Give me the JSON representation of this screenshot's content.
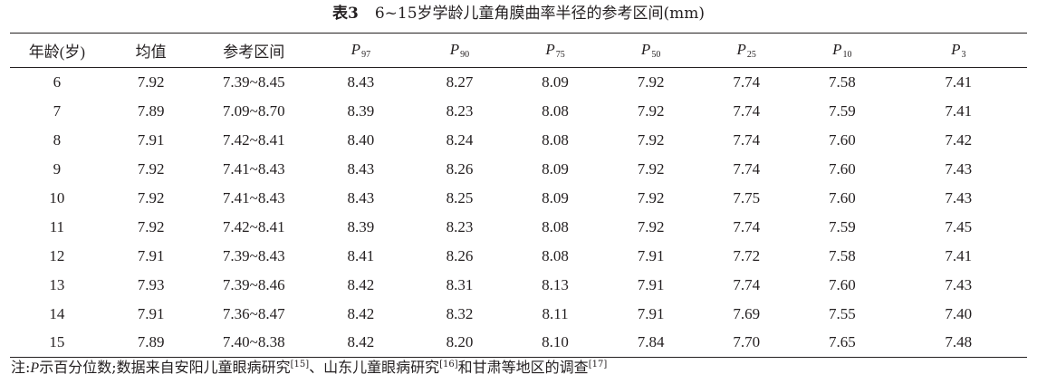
{
  "caption": {
    "label": "表3",
    "text": "6~15岁学龄儿童角膜曲率半径的参考区间(mm)"
  },
  "table": {
    "headers": {
      "age": "年龄(岁)",
      "mean": "均值",
      "ref_range": "参考区间",
      "percentiles": [
        {
          "letter": "P",
          "sub": "97"
        },
        {
          "letter": "P",
          "sub": "90"
        },
        {
          "letter": "P",
          "sub": "75"
        },
        {
          "letter": "P",
          "sub": "50"
        },
        {
          "letter": "P",
          "sub": "25"
        },
        {
          "letter": "P",
          "sub": "10"
        },
        {
          "letter": "P",
          "sub": "3"
        }
      ]
    },
    "rows": [
      [
        "6",
        "7.92",
        "7.39~8.45",
        "8.43",
        "8.27",
        "8.09",
        "7.92",
        "7.74",
        "7.58",
        "7.41"
      ],
      [
        "7",
        "7.89",
        "7.09~8.70",
        "8.39",
        "8.23",
        "8.08",
        "7.92",
        "7.74",
        "7.59",
        "7.41"
      ],
      [
        "8",
        "7.91",
        "7.42~8.41",
        "8.40",
        "8.24",
        "8.08",
        "7.92",
        "7.74",
        "7.60",
        "7.42"
      ],
      [
        "9",
        "7.92",
        "7.41~8.43",
        "8.43",
        "8.26",
        "8.09",
        "7.92",
        "7.74",
        "7.60",
        "7.43"
      ],
      [
        "10",
        "7.92",
        "7.41~8.43",
        "8.43",
        "8.25",
        "8.09",
        "7.92",
        "7.75",
        "7.60",
        "7.43"
      ],
      [
        "11",
        "7.92",
        "7.42~8.41",
        "8.39",
        "8.23",
        "8.08",
        "7.92",
        "7.74",
        "7.59",
        "7.45"
      ],
      [
        "12",
        "7.91",
        "7.39~8.43",
        "8.41",
        "8.26",
        "8.08",
        "7.91",
        "7.72",
        "7.58",
        "7.41"
      ],
      [
        "13",
        "7.93",
        "7.39~8.46",
        "8.42",
        "8.31",
        "8.13",
        "7.91",
        "7.74",
        "7.60",
        "7.43"
      ],
      [
        "14",
        "7.91",
        "7.36~8.47",
        "8.42",
        "8.32",
        "8.11",
        "7.91",
        "7.69",
        "7.55",
        "7.40"
      ],
      [
        "15",
        "7.89",
        "7.40~8.38",
        "8.42",
        "8.20",
        "8.10",
        "7.84",
        "7.70",
        "7.65",
        "7.48"
      ]
    ]
  },
  "note": {
    "prefix": "注:",
    "p_letter": "P",
    "text1": "示百分位数;数据来自安阳儿童眼病研究",
    "ref1": "[15]",
    "text2": "、山东儿童眼病研究",
    "ref2": "[16]",
    "text3": "和甘肃等地区的调查",
    "ref3": "[17]"
  }
}
